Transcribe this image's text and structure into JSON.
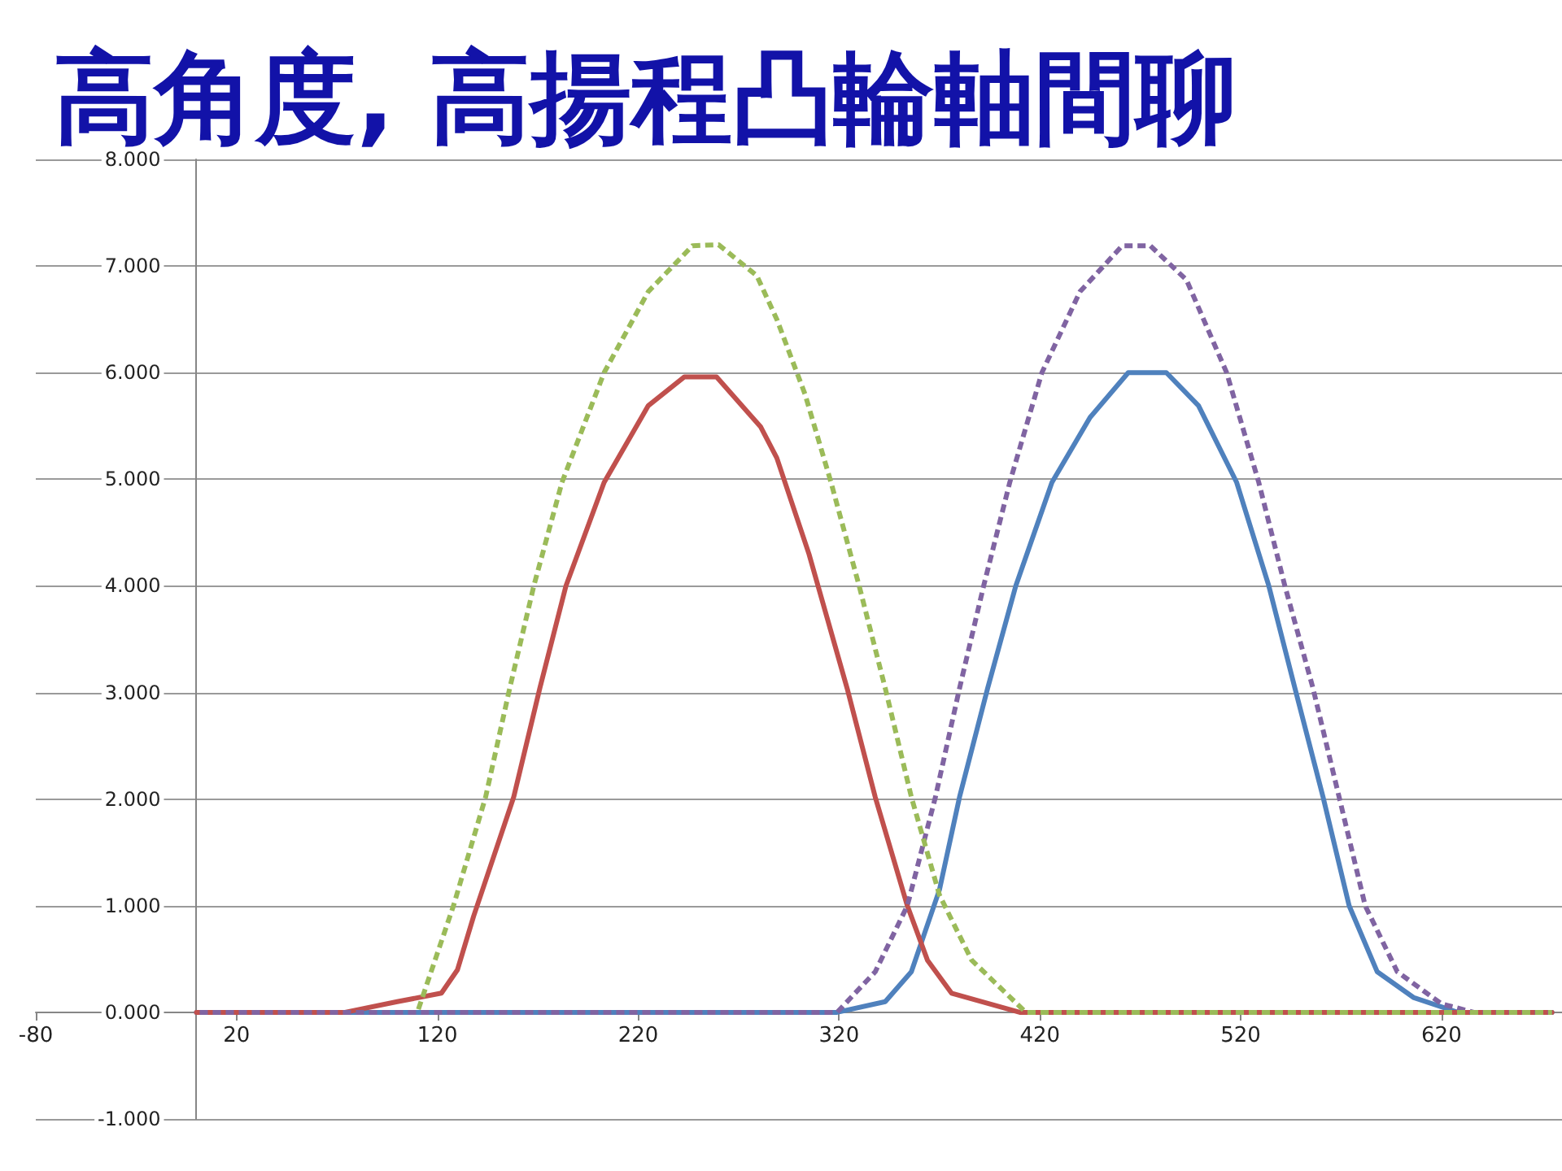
{
  "chart_data": {
    "type": "line",
    "title": "高角度, 高揚程凸輪軸間聊",
    "xlim": [
      -80,
      680
    ],
    "xticks": [
      -80,
      20,
      120,
      220,
      320,
      420,
      520,
      620
    ],
    "ylim": [
      -1,
      8
    ],
    "yticks": [
      {
        "value": -1,
        "label": "-1.000"
      },
      {
        "value": 0,
        "label": "0.000"
      },
      {
        "value": 1,
        "label": "1.000"
      },
      {
        "value": 2,
        "label": "2.000"
      },
      {
        "value": 3,
        "label": "3.000"
      },
      {
        "value": 4,
        "label": "4.000"
      },
      {
        "value": 5,
        "label": "5.000"
      },
      {
        "value": 6,
        "label": "6.000"
      },
      {
        "value": 7,
        "label": "7.000"
      },
      {
        "value": 8,
        "label": "8.000"
      }
    ],
    "grid": "y",
    "marker": "none",
    "series": [
      {
        "color": "#4f81bd",
        "line_style": "solid",
        "x": [
          0,
          319,
          343,
          356,
          370,
          380,
          394,
          408,
          426,
          445,
          464,
          483,
          499,
          518,
          534,
          547,
          561,
          574,
          588,
          606,
          628,
          675
        ],
        "values": [
          0,
          0,
          0.1,
          0.38,
          1.15,
          2.02,
          3.04,
          4.0,
          4.97,
          5.58,
          6.0,
          6.0,
          5.69,
          4.97,
          4.0,
          3.04,
          2.02,
          1.0,
          0.38,
          0.14,
          0,
          0
        ]
      },
      {
        "color": "#c0504d",
        "line_style": "solid",
        "x": [
          0,
          74,
          100,
          122,
          130,
          138,
          158,
          171,
          184,
          203,
          225,
          243,
          259,
          281,
          289,
          305,
          324,
          338,
          354,
          364,
          376,
          410,
          675
        ],
        "values": [
          0,
          0,
          0.1,
          0.18,
          0.4,
          0.9,
          2.02,
          3.04,
          4.0,
          4.97,
          5.69,
          5.96,
          5.96,
          5.49,
          5.2,
          4.3,
          3.04,
          2.02,
          1.0,
          0.49,
          0.18,
          0,
          0
        ]
      },
      {
        "color": "#9bbb59",
        "line_style": "dashed",
        "x": [
          110,
          128,
          144,
          156,
          168,
          182,
          203,
          225,
          247,
          260,
          279,
          289,
          303,
          316,
          330,
          343,
          356,
          370,
          386,
          413,
          675
        ],
        "values": [
          0,
          1.0,
          2.02,
          3.04,
          4.0,
          4.97,
          6.0,
          6.76,
          7.19,
          7.2,
          6.91,
          6.5,
          5.8,
          4.97,
          4.0,
          3.04,
          2.02,
          1.1,
          0.49,
          0,
          0
        ]
      },
      {
        "color": "#8064a2",
        "line_style": "dashed",
        "x": [
          0,
          319,
          338,
          354,
          368,
          380,
          392,
          405,
          421,
          440,
          461,
          475,
          493,
          513,
          529,
          542,
          556,
          569,
          582,
          598,
          620,
          636,
          675
        ],
        "values": [
          0,
          0,
          0.38,
          1.0,
          2.02,
          3.04,
          4.0,
          4.97,
          6.0,
          6.76,
          7.19,
          7.19,
          6.87,
          6.0,
          4.97,
          4.0,
          3.04,
          2.02,
          1.0,
          0.38,
          0.08,
          0,
          0
        ]
      }
    ]
  }
}
